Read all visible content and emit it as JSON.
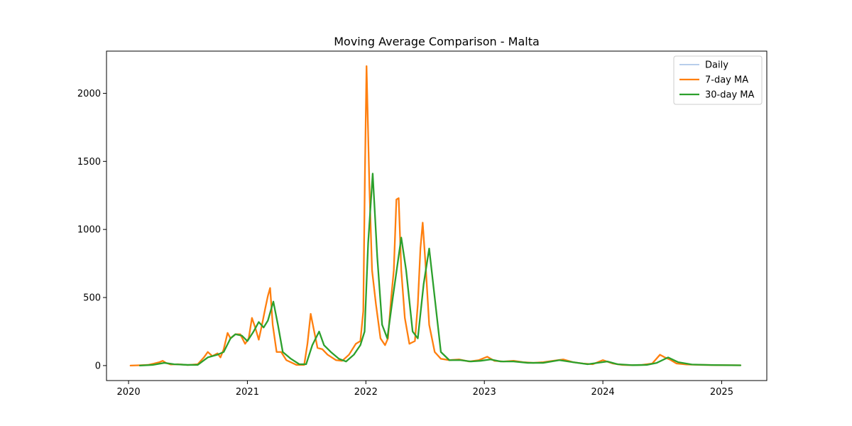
{
  "chart_data": {
    "type": "line",
    "title": "Moving Average Comparison - Malta",
    "xlabel": "",
    "ylabel": "",
    "x_axis": {
      "type": "date",
      "range": [
        "2019-10-25",
        "2025-05-20"
      ],
      "ticks": [
        "2020-01-01",
        "2021-01-01",
        "2022-01-01",
        "2023-01-01",
        "2024-01-01",
        "2025-01-01"
      ],
      "tick_labels": [
        "2020",
        "2021",
        "2022",
        "2023",
        "2024",
        "2025"
      ]
    },
    "y_axis": {
      "range": [
        -110,
        2310
      ],
      "ticks": [
        0,
        500,
        1000,
        1500,
        2000
      ],
      "tick_labels": [
        "0",
        "500",
        "1000",
        "1500",
        "2000"
      ]
    },
    "grid": false,
    "legend": {
      "position": "top-right",
      "entries": [
        "Daily",
        "7-day MA",
        "30-day MA"
      ]
    },
    "series": [
      {
        "name": "Daily",
        "color": "#aec7e8",
        "style": "thin-line",
        "points": [
          [
            "2020-01-07",
            0
          ],
          [
            "2020-02-01",
            2
          ],
          [
            "2020-03-01",
            5
          ],
          [
            "2020-03-20",
            15
          ],
          [
            "2020-04-05",
            25
          ],
          [
            "2020-04-15",
            35
          ],
          [
            "2020-04-25",
            20
          ],
          [
            "2020-05-10",
            8
          ],
          [
            "2020-06-01",
            10
          ],
          [
            "2020-07-01",
            4
          ],
          [
            "2020-08-01",
            10
          ],
          [
            "2020-08-20",
            60
          ],
          [
            "2020-09-01",
            100
          ],
          [
            "2020-09-15",
            70
          ],
          [
            "2020-10-01",
            90
          ],
          [
            "2020-10-10",
            60
          ],
          [
            "2020-10-20",
            120
          ],
          [
            "2020-11-01",
            240
          ],
          [
            "2020-11-10",
            200
          ],
          [
            "2020-11-25",
            230
          ],
          [
            "2020-12-10",
            230
          ],
          [
            "2020-12-25",
            160
          ],
          [
            "2021-01-05",
            200
          ],
          [
            "2021-01-15",
            350
          ],
          [
            "2021-01-25",
            280
          ],
          [
            "2021-02-05",
            190
          ],
          [
            "2021-02-15",
            300
          ],
          [
            "2021-02-25",
            420
          ],
          [
            "2021-03-05",
            510
          ],
          [
            "2021-03-12",
            570
          ],
          [
            "2021-03-20",
            300
          ],
          [
            "2021-04-01",
            100
          ],
          [
            "2021-04-15",
            100
          ],
          [
            "2021-05-01",
            40
          ],
          [
            "2021-06-01",
            5
          ],
          [
            "2021-06-25",
            5
          ],
          [
            "2021-07-05",
            160
          ],
          [
            "2021-07-15",
            380
          ],
          [
            "2021-07-25",
            260
          ],
          [
            "2021-08-05",
            130
          ],
          [
            "2021-08-20",
            120
          ],
          [
            "2021-09-05",
            80
          ],
          [
            "2021-10-01",
            40
          ],
          [
            "2021-10-20",
            35
          ],
          [
            "2021-11-10",
            80
          ],
          [
            "2021-12-01",
            160
          ],
          [
            "2021-12-15",
            180
          ],
          [
            "2021-12-24",
            400
          ],
          [
            "2021-12-29",
            1400
          ],
          [
            "2022-01-03",
            2200
          ],
          [
            "2022-01-06",
            1900
          ],
          [
            "2022-01-12",
            1300
          ],
          [
            "2022-01-20",
            700
          ],
          [
            "2022-02-01",
            450
          ],
          [
            "2022-02-15",
            200
          ],
          [
            "2022-03-01",
            150
          ],
          [
            "2022-03-10",
            200
          ],
          [
            "2022-03-20",
            500
          ],
          [
            "2022-03-28",
            700
          ],
          [
            "2022-04-05",
            1220
          ],
          [
            "2022-04-12",
            1230
          ],
          [
            "2022-04-20",
            700
          ],
          [
            "2022-05-01",
            350
          ],
          [
            "2022-05-15",
            160
          ],
          [
            "2022-06-01",
            180
          ],
          [
            "2022-06-10",
            450
          ],
          [
            "2022-06-18",
            860
          ],
          [
            "2022-06-25",
            1050
          ],
          [
            "2022-07-05",
            700
          ],
          [
            "2022-07-15",
            300
          ],
          [
            "2022-08-01",
            100
          ],
          [
            "2022-08-20",
            50
          ],
          [
            "2022-09-15",
            40
          ],
          [
            "2022-10-15",
            45
          ],
          [
            "2022-11-15",
            30
          ],
          [
            "2022-12-15",
            40
          ],
          [
            "2023-01-10",
            65
          ],
          [
            "2023-02-01",
            35
          ],
          [
            "2023-03-01",
            30
          ],
          [
            "2023-04-01",
            35
          ],
          [
            "2023-05-01",
            25
          ],
          [
            "2023-06-01",
            20
          ],
          [
            "2023-07-01",
            25
          ],
          [
            "2023-08-01",
            35
          ],
          [
            "2023-09-01",
            45
          ],
          [
            "2023-10-01",
            25
          ],
          [
            "2023-11-01",
            15
          ],
          [
            "2023-12-01",
            10
          ],
          [
            "2024-01-01",
            40
          ],
          [
            "2024-02-01",
            15
          ],
          [
            "2024-03-01",
            5
          ],
          [
            "2024-04-01",
            3
          ],
          [
            "2024-05-01",
            5
          ],
          [
            "2024-06-01",
            15
          ],
          [
            "2024-06-25",
            80
          ],
          [
            "2024-07-10",
            60
          ],
          [
            "2024-07-25",
            45
          ],
          [
            "2024-08-15",
            15
          ],
          [
            "2024-09-15",
            8
          ],
          [
            "2024-11-01",
            5
          ],
          [
            "2025-01-01",
            3
          ],
          [
            "2025-02-28",
            2
          ]
        ]
      },
      {
        "name": "7-day MA",
        "color": "#ff7f0e",
        "style": "line",
        "points": [
          [
            "2020-01-07",
            0
          ],
          [
            "2020-02-01",
            2
          ],
          [
            "2020-03-01",
            5
          ],
          [
            "2020-03-20",
            15
          ],
          [
            "2020-04-05",
            25
          ],
          [
            "2020-04-15",
            35
          ],
          [
            "2020-04-25",
            20
          ],
          [
            "2020-05-10",
            8
          ],
          [
            "2020-06-01",
            10
          ],
          [
            "2020-07-01",
            4
          ],
          [
            "2020-08-01",
            10
          ],
          [
            "2020-08-20",
            60
          ],
          [
            "2020-09-01",
            100
          ],
          [
            "2020-09-15",
            70
          ],
          [
            "2020-10-01",
            90
          ],
          [
            "2020-10-10",
            60
          ],
          [
            "2020-10-20",
            120
          ],
          [
            "2020-11-01",
            240
          ],
          [
            "2020-11-10",
            200
          ],
          [
            "2020-11-25",
            230
          ],
          [
            "2020-12-10",
            230
          ],
          [
            "2020-12-25",
            160
          ],
          [
            "2021-01-05",
            200
          ],
          [
            "2021-01-15",
            350
          ],
          [
            "2021-01-25",
            280
          ],
          [
            "2021-02-05",
            190
          ],
          [
            "2021-02-15",
            300
          ],
          [
            "2021-02-25",
            420
          ],
          [
            "2021-03-05",
            510
          ],
          [
            "2021-03-12",
            570
          ],
          [
            "2021-03-20",
            300
          ],
          [
            "2021-04-01",
            100
          ],
          [
            "2021-04-15",
            100
          ],
          [
            "2021-05-01",
            40
          ],
          [
            "2021-06-01",
            5
          ],
          [
            "2021-06-25",
            5
          ],
          [
            "2021-07-05",
            160
          ],
          [
            "2021-07-15",
            380
          ],
          [
            "2021-07-25",
            260
          ],
          [
            "2021-08-05",
            130
          ],
          [
            "2021-08-20",
            120
          ],
          [
            "2021-09-05",
            80
          ],
          [
            "2021-10-01",
            40
          ],
          [
            "2021-10-20",
            35
          ],
          [
            "2021-11-10",
            80
          ],
          [
            "2021-12-01",
            160
          ],
          [
            "2021-12-15",
            180
          ],
          [
            "2021-12-24",
            400
          ],
          [
            "2021-12-29",
            1400
          ],
          [
            "2022-01-03",
            2200
          ],
          [
            "2022-01-06",
            1900
          ],
          [
            "2022-01-12",
            1300
          ],
          [
            "2022-01-20",
            700
          ],
          [
            "2022-02-01",
            450
          ],
          [
            "2022-02-15",
            200
          ],
          [
            "2022-03-01",
            150
          ],
          [
            "2022-03-10",
            200
          ],
          [
            "2022-03-20",
            500
          ],
          [
            "2022-03-28",
            700
          ],
          [
            "2022-04-05",
            1220
          ],
          [
            "2022-04-12",
            1230
          ],
          [
            "2022-04-20",
            700
          ],
          [
            "2022-05-01",
            350
          ],
          [
            "2022-05-15",
            160
          ],
          [
            "2022-06-01",
            180
          ],
          [
            "2022-06-10",
            450
          ],
          [
            "2022-06-18",
            860
          ],
          [
            "2022-06-25",
            1050
          ],
          [
            "2022-07-05",
            700
          ],
          [
            "2022-07-15",
            300
          ],
          [
            "2022-08-01",
            100
          ],
          [
            "2022-08-20",
            50
          ],
          [
            "2022-09-15",
            40
          ],
          [
            "2022-10-15",
            45
          ],
          [
            "2022-11-15",
            30
          ],
          [
            "2022-12-15",
            40
          ],
          [
            "2023-01-10",
            65
          ],
          [
            "2023-02-01",
            35
          ],
          [
            "2023-03-01",
            30
          ],
          [
            "2023-04-01",
            35
          ],
          [
            "2023-05-01",
            25
          ],
          [
            "2023-06-01",
            20
          ],
          [
            "2023-07-01",
            25
          ],
          [
            "2023-08-01",
            35
          ],
          [
            "2023-09-01",
            45
          ],
          [
            "2023-10-01",
            25
          ],
          [
            "2023-11-01",
            15
          ],
          [
            "2023-12-01",
            10
          ],
          [
            "2024-01-01",
            40
          ],
          [
            "2024-02-01",
            15
          ],
          [
            "2024-03-01",
            5
          ],
          [
            "2024-04-01",
            3
          ],
          [
            "2024-05-01",
            5
          ],
          [
            "2024-06-01",
            15
          ],
          [
            "2024-06-25",
            80
          ],
          [
            "2024-07-10",
            60
          ],
          [
            "2024-07-25",
            45
          ],
          [
            "2024-08-15",
            15
          ],
          [
            "2024-09-15",
            8
          ],
          [
            "2024-11-01",
            5
          ],
          [
            "2025-01-01",
            3
          ],
          [
            "2025-02-28",
            2
          ]
        ]
      },
      {
        "name": "30-day MA",
        "color": "#2ca02c",
        "style": "line",
        "points": [
          [
            "2020-02-05",
            0
          ],
          [
            "2020-03-15",
            5
          ],
          [
            "2020-04-20",
            20
          ],
          [
            "2020-05-20",
            10
          ],
          [
            "2020-07-01",
            5
          ],
          [
            "2020-08-01",
            5
          ],
          [
            "2020-09-01",
            60
          ],
          [
            "2020-10-01",
            80
          ],
          [
            "2020-10-20",
            100
          ],
          [
            "2020-11-10",
            200
          ],
          [
            "2020-11-25",
            230
          ],
          [
            "2020-12-15",
            220
          ],
          [
            "2021-01-01",
            180
          ],
          [
            "2021-01-20",
            250
          ],
          [
            "2021-02-05",
            320
          ],
          [
            "2021-02-20",
            280
          ],
          [
            "2021-03-05",
            330
          ],
          [
            "2021-03-22",
            470
          ],
          [
            "2021-04-05",
            300
          ],
          [
            "2021-04-20",
            100
          ],
          [
            "2021-05-15",
            50
          ],
          [
            "2021-06-10",
            10
          ],
          [
            "2021-07-01",
            10
          ],
          [
            "2021-07-20",
            150
          ],
          [
            "2021-08-10",
            250
          ],
          [
            "2021-08-25",
            150
          ],
          [
            "2021-09-15",
            100
          ],
          [
            "2021-10-10",
            50
          ],
          [
            "2021-11-01",
            30
          ],
          [
            "2021-11-25",
            80
          ],
          [
            "2021-12-15",
            150
          ],
          [
            "2021-12-28",
            250
          ],
          [
            "2022-01-08",
            900
          ],
          [
            "2022-01-22",
            1410
          ],
          [
            "2022-02-05",
            800
          ],
          [
            "2022-02-20",
            300
          ],
          [
            "2022-03-08",
            200
          ],
          [
            "2022-03-25",
            500
          ],
          [
            "2022-04-20",
            940
          ],
          [
            "2022-05-05",
            700
          ],
          [
            "2022-05-25",
            250
          ],
          [
            "2022-06-10",
            200
          ],
          [
            "2022-06-28",
            600
          ],
          [
            "2022-07-15",
            860
          ],
          [
            "2022-08-01",
            500
          ],
          [
            "2022-08-20",
            100
          ],
          [
            "2022-09-15",
            40
          ],
          [
            "2022-10-20",
            40
          ],
          [
            "2022-11-20",
            30
          ],
          [
            "2022-12-20",
            35
          ],
          [
            "2023-01-20",
            45
          ],
          [
            "2023-02-20",
            30
          ],
          [
            "2023-04-01",
            30
          ],
          [
            "2023-05-15",
            20
          ],
          [
            "2023-07-01",
            20
          ],
          [
            "2023-08-20",
            40
          ],
          [
            "2023-10-01",
            25
          ],
          [
            "2023-11-15",
            10
          ],
          [
            "2024-01-15",
            30
          ],
          [
            "2024-02-15",
            10
          ],
          [
            "2024-04-01",
            3
          ],
          [
            "2024-05-15",
            5
          ],
          [
            "2024-06-15",
            20
          ],
          [
            "2024-07-20",
            60
          ],
          [
            "2024-08-20",
            25
          ],
          [
            "2024-10-01",
            8
          ],
          [
            "2024-12-01",
            4
          ],
          [
            "2025-02-28",
            2
          ]
        ]
      }
    ]
  }
}
